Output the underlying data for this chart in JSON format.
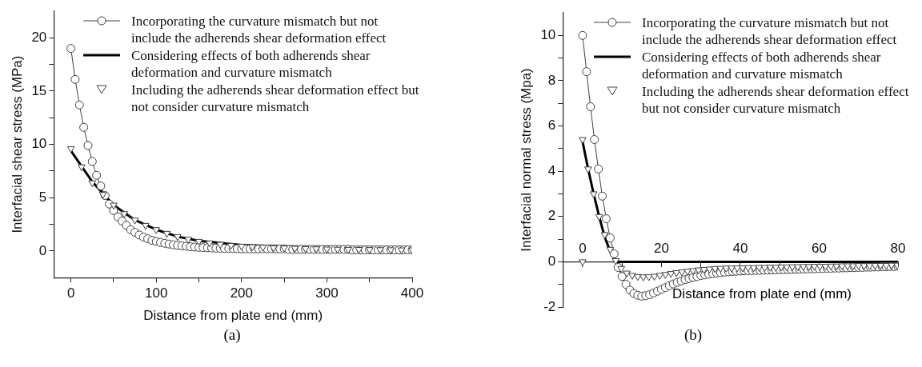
{
  "chart_data": [
    {
      "type": "line",
      "xlabel": "Distance from plate end (mm)",
      "ylabel": "Interfacial shear stress (MPa)",
      "xlim": [
        -20,
        400
      ],
      "xticks": [
        0,
        {
          "value": 50,
          "label": null
        },
        100,
        {
          "value": 150,
          "label": null
        },
        200,
        {
          "value": 250,
          "label": null
        },
        300,
        {
          "value": 350,
          "label": null
        },
        400
      ],
      "ylim": [
        -2.5,
        22.5
      ],
      "yticks": [
        0,
        {
          "value": 2.5,
          "label": null
        },
        5,
        {
          "value": 7.5,
          "label": null
        },
        10,
        {
          "value": 12.5,
          "label": null
        },
        15,
        {
          "value": 17.5,
          "label": null
        },
        20
      ],
      "grid": false,
      "legend": "top right",
      "annotations": [
        "(a)"
      ],
      "series": [
        {
          "name": "Incorporating the curvature mismatch but not include the adherends shear deformation effect",
          "type": "line",
          "marker": "circle",
          "color": "#404040",
          "x": [
            0,
            5,
            10,
            15,
            20,
            25,
            30,
            35,
            40,
            45,
            50,
            55,
            60,
            65,
            70,
            75,
            80,
            85,
            90,
            95,
            100,
            105,
            110,
            115,
            120,
            125,
            130,
            135,
            140,
            145,
            150,
            155,
            160,
            165,
            170,
            175,
            180,
            185,
            190,
            195,
            200,
            205,
            210,
            215,
            220,
            225,
            230,
            235,
            240,
            245,
            250,
            255,
            260,
            265,
            270,
            275,
            280,
            285,
            290,
            295,
            300,
            305,
            310,
            315,
            320,
            325,
            330,
            335,
            340,
            345,
            350,
            355,
            360,
            365,
            370,
            375,
            380,
            385,
            390,
            395,
            400
          ],
          "values": [
            19.0,
            16.1,
            13.7,
            11.6,
            9.9,
            8.4,
            7.1,
            6.1,
            5.2,
            4.4,
            3.8,
            3.2,
            2.8,
            2.4,
            2.0,
            1.75,
            1.5,
            1.3,
            1.15,
            1.0,
            0.9,
            0.8,
            0.72,
            0.65,
            0.58,
            0.52,
            0.48,
            0.44,
            0.4,
            0.37,
            0.34,
            0.32,
            0.3,
            0.28,
            0.26,
            0.25,
            0.24,
            0.23,
            0.22,
            0.21,
            0.2,
            0.2,
            0.2,
            0.2,
            0.2,
            0.2,
            0.2,
            0.2,
            0.2,
            0.2,
            0.2,
            0.15,
            0.15,
            0.15,
            0.15,
            0.15,
            0.15,
            0.15,
            0.15,
            0.15,
            0.15,
            0.15,
            0.15,
            0.15,
            0.15,
            0.15,
            0.1,
            0.1,
            0.1,
            0.1,
            0.1,
            0.1,
            0.1,
            0.1,
            0.1,
            0.1,
            0.1,
            0.1,
            0.1,
            0.1,
            0.1
          ]
        },
        {
          "name": "Considering effects of both adherends shear deformation and curvature mismatch",
          "type": "line",
          "marker": "none",
          "color": "#000000",
          "x": [
            0,
            25,
            50,
            75,
            100,
            125,
            150,
            200,
            250,
            300,
            400
          ],
          "values": [
            9.4,
            6.5,
            4.3,
            2.9,
            2.0,
            1.35,
            0.95,
            0.55,
            0.42,
            0.37,
            0.35
          ]
        },
        {
          "name": "Including the adherends shear deformation effect but not consider curvature mismatch",
          "type": "scatter",
          "marker": "triangle",
          "color": "#404040",
          "x": [
            0,
            12.5,
            25,
            37.5,
            50,
            62.5,
            75,
            87.5,
            100,
            112.5,
            125,
            137.5,
            150,
            162.5,
            175,
            187.5,
            200,
            212.5,
            225,
            237.5,
            250,
            262.5,
            275,
            287.5,
            300,
            312.5,
            325,
            337.5,
            350,
            362.5,
            375,
            387.5,
            400
          ],
          "values": [
            9.6,
            7.9,
            6.4,
            5.3,
            4.3,
            3.5,
            2.9,
            2.4,
            2.0,
            1.65,
            1.35,
            1.1,
            0.9,
            0.75,
            0.62,
            0.52,
            0.45,
            0.4,
            0.35,
            0.3,
            0.28,
            0.25,
            0.22,
            0.2,
            0.18,
            0.16,
            0.15,
            0.14,
            0.13,
            0.12,
            0.11,
            0.1,
            0.1
          ]
        }
      ]
    },
    {
      "type": "line",
      "xlabel": "Distance from plate end (mm)",
      "ylabel": "Interfacial normal stress (Mpa)",
      "xlim": [
        -5,
        80
      ],
      "xticks": [
        0,
        {
          "value": 10,
          "label": null
        },
        20,
        {
          "value": 30,
          "label": null
        },
        40,
        {
          "value": 50,
          "label": null
        },
        60,
        {
          "value": 70,
          "label": null
        },
        80
      ],
      "ylim": [
        -2,
        11
      ],
      "yticks": [
        -2,
        {
          "value": -1,
          "label": null
        },
        0,
        {
          "value": 1,
          "label": null
        },
        2,
        {
          "value": 3,
          "label": null
        },
        4,
        {
          "value": 5,
          "label": null
        },
        6,
        {
          "value": 7,
          "label": null
        },
        8,
        {
          "value": 9,
          "label": null
        },
        10
      ],
      "grid": false,
      "legend": "top right",
      "annotations": [
        "(b)"
      ],
      "series": [
        {
          "name": "Incorporating the curvature mismatch but not include the adherends shear deformation effect",
          "type": "line",
          "marker": "circle",
          "color": "#404040",
          "x": [
            0,
            1,
            2,
            3,
            4,
            5,
            6,
            7,
            8,
            9,
            10,
            11,
            12,
            13,
            14,
            15,
            16,
            17,
            18,
            19,
            20,
            21,
            22,
            23,
            24,
            25,
            26,
            27,
            28,
            29,
            30,
            31,
            32,
            33,
            34,
            35,
            36,
            37,
            38,
            39,
            40,
            41,
            42,
            43,
            44,
            45,
            46,
            47,
            48,
            49,
            50,
            51,
            52,
            53,
            54,
            55,
            56,
            57,
            58,
            59,
            60,
            61,
            62,
            63,
            64,
            65,
            66,
            67,
            68,
            69,
            70,
            71,
            72,
            73,
            74,
            75,
            76,
            77,
            78,
            79,
            80
          ],
          "values": [
            10,
            8.4,
            6.85,
            5.4,
            4.1,
            2.9,
            1.9,
            1.05,
            0.35,
            -0.25,
            -0.65,
            -1.0,
            -1.25,
            -1.4,
            -1.48,
            -1.52,
            -1.5,
            -1.45,
            -1.38,
            -1.3,
            -1.22,
            -1.14,
            -1.06,
            -0.98,
            -0.91,
            -0.85,
            -0.79,
            -0.74,
            -0.69,
            -0.65,
            -0.61,
            -0.58,
            -0.55,
            -0.52,
            -0.5,
            -0.48,
            -0.46,
            -0.44,
            -0.43,
            -0.42,
            -0.41,
            -0.4,
            -0.39,
            -0.39,
            -0.38,
            -0.38,
            -0.37,
            -0.37,
            -0.36,
            -0.36,
            -0.35,
            -0.35,
            -0.34,
            -0.34,
            -0.33,
            -0.33,
            -0.32,
            -0.32,
            -0.31,
            -0.31,
            -0.3,
            -0.3,
            -0.29,
            -0.29,
            -0.28,
            -0.28,
            -0.27,
            -0.27,
            -0.26,
            -0.26,
            -0.25,
            -0.25,
            -0.24,
            -0.24,
            -0.23,
            -0.23,
            -0.22,
            -0.22,
            -0.21,
            -0.21,
            -0.2
          ]
        },
        {
          "name": "Considering effects of both adherends shear deformation and curvature mismatch",
          "type": "line",
          "marker": "none",
          "color": "#000000",
          "x": [
            0,
            1.4,
            2.8,
            4.2,
            5.6,
            7,
            8.5,
            80
          ],
          "values": [
            5.3,
            4.1,
            3.0,
            2.0,
            1.1,
            0.45,
            0,
            0
          ]
        },
        {
          "name": "Including the adherends shear deformation effect but not consider curvature mismatch",
          "type": "scatter",
          "marker": "triangle",
          "color": "#404040",
          "x": [
            0,
            0,
            1.4,
            2.8,
            4.2,
            5.6,
            7,
            8.4,
            9.8,
            11.2,
            12.6,
            14,
            15.4,
            16.8,
            18.2,
            19.6,
            21,
            22.4,
            23.8,
            25.2,
            26.6,
            28,
            29.4,
            30.8,
            32.2,
            33.6,
            35,
            36.4,
            37.8,
            39.2,
            40.6,
            42,
            43.4,
            44.8,
            46.2,
            47.6,
            49,
            50.4,
            51.8,
            53.2,
            54.6,
            56,
            57.4,
            58.8,
            60.2,
            61.6,
            63,
            64.4,
            65.8,
            67.2,
            68.6,
            70,
            71.4,
            72.8,
            74.2,
            75.6,
            77,
            78.4,
            79.8
          ],
          "values": [
            0,
            5.4,
            4.1,
            3.0,
            2.0,
            1.2,
            0.55,
            0.05,
            -0.3,
            -0.5,
            -0.6,
            -0.65,
            -0.67,
            -0.66,
            -0.64,
            -0.6,
            -0.56,
            -0.52,
            -0.48,
            -0.45,
            -0.42,
            -0.39,
            -0.36,
            -0.34,
            -0.32,
            -0.3,
            -0.29,
            -0.28,
            -0.28,
            -0.27,
            -0.27,
            -0.26,
            -0.26,
            -0.25,
            -0.25,
            -0.24,
            -0.24,
            -0.23,
            -0.23,
            -0.22,
            -0.22,
            -0.21,
            -0.21,
            -0.2,
            -0.2,
            -0.2,
            -0.19,
            -0.19,
            -0.18,
            -0.18,
            -0.18,
            -0.17,
            -0.17,
            -0.17,
            -0.16,
            -0.16,
            -0.16,
            -0.15,
            -0.15
          ]
        }
      ]
    }
  ]
}
